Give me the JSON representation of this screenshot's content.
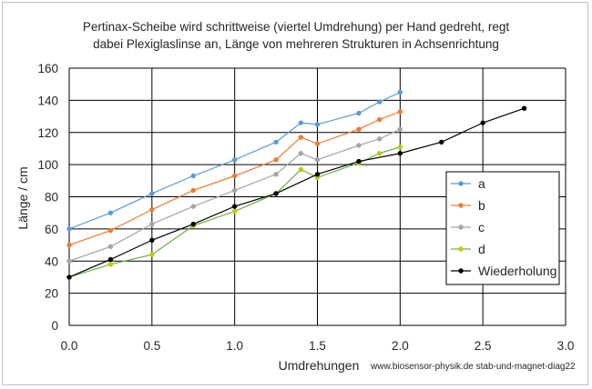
{
  "chart_data": {
    "type": "line",
    "title": [
      "Pertinax-Scheibe wird schrittweise (viertel Umdrehung) per Hand gedreht, regt",
      "dabei Plexiglaslinse an, Länge von mehreren Strukturen in Achsenrichtung"
    ],
    "xlabel": "Umdrehungen",
    "ylabel": "Länge / cm",
    "xlim": [
      0,
      3
    ],
    "ylim": [
      0,
      160
    ],
    "x_ticks": [
      "0.0",
      "0.5",
      "1.0",
      "1.5",
      "2.0",
      "2.5",
      "3.0"
    ],
    "x_tick_values": [
      0,
      0.5,
      1,
      1.5,
      2,
      2.5,
      3
    ],
    "y_ticks": [
      "0",
      "20",
      "40",
      "60",
      "80",
      "100",
      "120",
      "140",
      "160"
    ],
    "y_tick_values": [
      0,
      20,
      40,
      60,
      80,
      100,
      120,
      140,
      160
    ],
    "grid": true,
    "legend_position": "right",
    "source_note": "www.biosensor-physik.de stab-und-magnet-diag22",
    "series": [
      {
        "name": "a",
        "color": "#5b9bd5",
        "points": [
          [
            0,
            60
          ],
          [
            0.25,
            70
          ],
          [
            0.5,
            82
          ],
          [
            0.75,
            93
          ],
          [
            1.0,
            103
          ],
          [
            1.25,
            114
          ],
          [
            1.4,
            126
          ],
          [
            1.5,
            125
          ],
          [
            1.75,
            132
          ],
          [
            1.875,
            139
          ],
          [
            2.0,
            145
          ]
        ]
      },
      {
        "name": "b",
        "color": "#ed7d31",
        "points": [
          [
            0,
            50
          ],
          [
            0.25,
            59
          ],
          [
            0.5,
            72
          ],
          [
            0.75,
            84
          ],
          [
            1.0,
            93
          ],
          [
            1.25,
            103
          ],
          [
            1.4,
            117
          ],
          [
            1.5,
            113
          ],
          [
            1.75,
            122
          ],
          [
            1.875,
            128
          ],
          [
            2.0,
            133
          ]
        ]
      },
      {
        "name": "c",
        "color": "#a5a5a5",
        "points": [
          [
            0,
            40
          ],
          [
            0.25,
            49
          ],
          [
            0.5,
            63
          ],
          [
            0.75,
            74
          ],
          [
            1.0,
            84
          ],
          [
            1.25,
            94
          ],
          [
            1.4,
            107
          ],
          [
            1.5,
            103
          ],
          [
            1.75,
            112
          ],
          [
            1.875,
            116
          ],
          [
            2.0,
            122
          ]
        ]
      },
      {
        "name": "d",
        "color": "#70ad47",
        "marker_color": "#bccc00",
        "points": [
          [
            0,
            30
          ],
          [
            0.25,
            38
          ],
          [
            0.5,
            44
          ],
          [
            0.75,
            62
          ],
          [
            1.0,
            71
          ],
          [
            1.25,
            82
          ],
          [
            1.4,
            97
          ],
          [
            1.5,
            92
          ],
          [
            1.75,
            101
          ],
          [
            1.875,
            107
          ],
          [
            2.0,
            111
          ]
        ]
      },
      {
        "name": "Wiederholung",
        "color": "#000000",
        "points": [
          [
            0,
            30
          ],
          [
            0.25,
            41
          ],
          [
            0.5,
            53
          ],
          [
            0.75,
            63
          ],
          [
            1.0,
            74
          ],
          [
            1.25,
            82
          ],
          [
            1.5,
            94
          ],
          [
            1.75,
            102
          ],
          [
            2.0,
            107
          ],
          [
            2.25,
            114
          ],
          [
            2.5,
            126
          ],
          [
            2.75,
            135
          ]
        ]
      }
    ]
  }
}
